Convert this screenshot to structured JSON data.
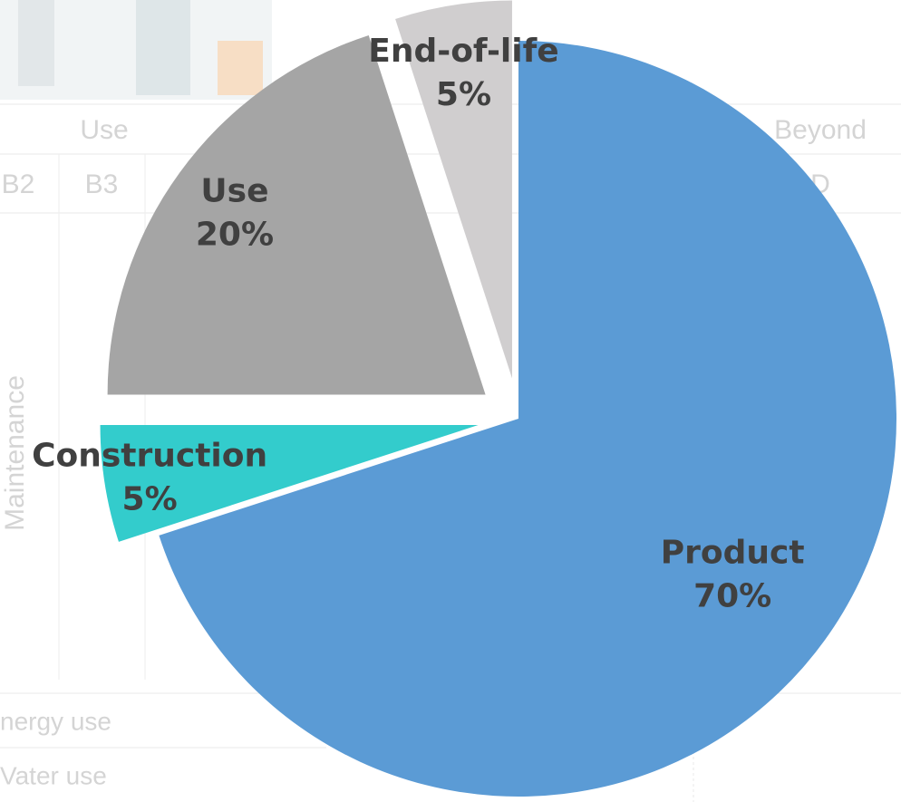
{
  "chart_data": {
    "type": "pie",
    "categories": [
      "Product",
      "Construction",
      "Use",
      "End-of-life"
    ],
    "values": [
      70,
      5,
      20,
      5
    ],
    "value_labels": [
      "70%",
      "5%",
      "20%",
      "5%"
    ],
    "colors": [
      "#5b9bd5",
      "#33cccc",
      "#a5a5a5",
      "#d0cecf"
    ],
    "exploded": [
      false,
      true,
      true,
      true
    ]
  },
  "background": {
    "texts": [
      "Use",
      "B2",
      "B3",
      "Beyond",
      "D",
      "Maintenance",
      "nergy use",
      "Vater use"
    ]
  }
}
